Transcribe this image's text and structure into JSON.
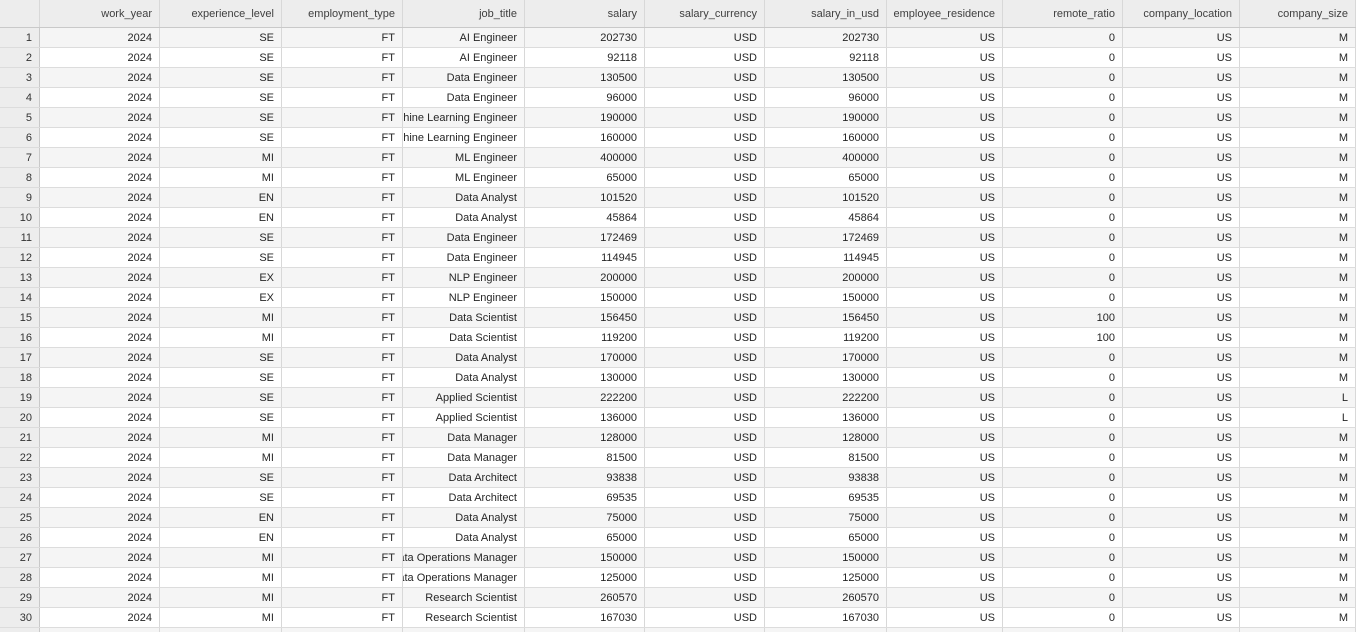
{
  "colors": {
    "header_bg": "#ededed",
    "stripe_bg": "#f5f5f5",
    "grid_line": "#d8d8d8",
    "text": "#262626"
  },
  "table": {
    "corner_label": "",
    "columns": [
      "work_year",
      "experience_level",
      "employment_type",
      "job_title",
      "salary",
      "salary_currency",
      "salary_in_usd",
      "employee_residence",
      "remote_ratio",
      "company_location",
      "company_size"
    ],
    "rows": [
      {
        "index": "1",
        "cells": [
          "2024",
          "SE",
          "FT",
          "AI Engineer",
          "202730",
          "USD",
          "202730",
          "US",
          "0",
          "US",
          "M"
        ]
      },
      {
        "index": "2",
        "cells": [
          "2024",
          "SE",
          "FT",
          "AI Engineer",
          "92118",
          "USD",
          "92118",
          "US",
          "0",
          "US",
          "M"
        ]
      },
      {
        "index": "3",
        "cells": [
          "2024",
          "SE",
          "FT",
          "Data Engineer",
          "130500",
          "USD",
          "130500",
          "US",
          "0",
          "US",
          "M"
        ]
      },
      {
        "index": "4",
        "cells": [
          "2024",
          "SE",
          "FT",
          "Data Engineer",
          "96000",
          "USD",
          "96000",
          "US",
          "0",
          "US",
          "M"
        ]
      },
      {
        "index": "5",
        "cells": [
          "2024",
          "SE",
          "FT",
          "Machine Learning Engineer",
          "190000",
          "USD",
          "190000",
          "US",
          "0",
          "US",
          "M"
        ]
      },
      {
        "index": "6",
        "cells": [
          "2024",
          "SE",
          "FT",
          "Machine Learning Engineer",
          "160000",
          "USD",
          "160000",
          "US",
          "0",
          "US",
          "M"
        ]
      },
      {
        "index": "7",
        "cells": [
          "2024",
          "MI",
          "FT",
          "ML Engineer",
          "400000",
          "USD",
          "400000",
          "US",
          "0",
          "US",
          "M"
        ]
      },
      {
        "index": "8",
        "cells": [
          "2024",
          "MI",
          "FT",
          "ML Engineer",
          "65000",
          "USD",
          "65000",
          "US",
          "0",
          "US",
          "M"
        ]
      },
      {
        "index": "9",
        "cells": [
          "2024",
          "EN",
          "FT",
          "Data Analyst",
          "101520",
          "USD",
          "101520",
          "US",
          "0",
          "US",
          "M"
        ]
      },
      {
        "index": "10",
        "cells": [
          "2024",
          "EN",
          "FT",
          "Data Analyst",
          "45864",
          "USD",
          "45864",
          "US",
          "0",
          "US",
          "M"
        ]
      },
      {
        "index": "11",
        "cells": [
          "2024",
          "SE",
          "FT",
          "Data Engineer",
          "172469",
          "USD",
          "172469",
          "US",
          "0",
          "US",
          "M"
        ]
      },
      {
        "index": "12",
        "cells": [
          "2024",
          "SE",
          "FT",
          "Data Engineer",
          "114945",
          "USD",
          "114945",
          "US",
          "0",
          "US",
          "M"
        ]
      },
      {
        "index": "13",
        "cells": [
          "2024",
          "EX",
          "FT",
          "NLP Engineer",
          "200000",
          "USD",
          "200000",
          "US",
          "0",
          "US",
          "M"
        ]
      },
      {
        "index": "14",
        "cells": [
          "2024",
          "EX",
          "FT",
          "NLP Engineer",
          "150000",
          "USD",
          "150000",
          "US",
          "0",
          "US",
          "M"
        ]
      },
      {
        "index": "15",
        "cells": [
          "2024",
          "MI",
          "FT",
          "Data Scientist",
          "156450",
          "USD",
          "156450",
          "US",
          "100",
          "US",
          "M"
        ]
      },
      {
        "index": "16",
        "cells": [
          "2024",
          "MI",
          "FT",
          "Data Scientist",
          "119200",
          "USD",
          "119200",
          "US",
          "100",
          "US",
          "M"
        ]
      },
      {
        "index": "17",
        "cells": [
          "2024",
          "SE",
          "FT",
          "Data Analyst",
          "170000",
          "USD",
          "170000",
          "US",
          "0",
          "US",
          "M"
        ]
      },
      {
        "index": "18",
        "cells": [
          "2024",
          "SE",
          "FT",
          "Data Analyst",
          "130000",
          "USD",
          "130000",
          "US",
          "0",
          "US",
          "M"
        ]
      },
      {
        "index": "19",
        "cells": [
          "2024",
          "SE",
          "FT",
          "Applied Scientist",
          "222200",
          "USD",
          "222200",
          "US",
          "0",
          "US",
          "L"
        ]
      },
      {
        "index": "20",
        "cells": [
          "2024",
          "SE",
          "FT",
          "Applied Scientist",
          "136000",
          "USD",
          "136000",
          "US",
          "0",
          "US",
          "L"
        ]
      },
      {
        "index": "21",
        "cells": [
          "2024",
          "MI",
          "FT",
          "Data Manager",
          "128000",
          "USD",
          "128000",
          "US",
          "0",
          "US",
          "M"
        ]
      },
      {
        "index": "22",
        "cells": [
          "2024",
          "MI",
          "FT",
          "Data Manager",
          "81500",
          "USD",
          "81500",
          "US",
          "0",
          "US",
          "M"
        ]
      },
      {
        "index": "23",
        "cells": [
          "2024",
          "SE",
          "FT",
          "Data Architect",
          "93838",
          "USD",
          "93838",
          "US",
          "0",
          "US",
          "M"
        ]
      },
      {
        "index": "24",
        "cells": [
          "2024",
          "SE",
          "FT",
          "Data Architect",
          "69535",
          "USD",
          "69535",
          "US",
          "0",
          "US",
          "M"
        ]
      },
      {
        "index": "25",
        "cells": [
          "2024",
          "EN",
          "FT",
          "Data Analyst",
          "75000",
          "USD",
          "75000",
          "US",
          "0",
          "US",
          "M"
        ]
      },
      {
        "index": "26",
        "cells": [
          "2024",
          "EN",
          "FT",
          "Data Analyst",
          "65000",
          "USD",
          "65000",
          "US",
          "0",
          "US",
          "M"
        ]
      },
      {
        "index": "27",
        "cells": [
          "2024",
          "MI",
          "FT",
          "Data Operations Manager",
          "150000",
          "USD",
          "150000",
          "US",
          "0",
          "US",
          "M"
        ]
      },
      {
        "index": "28",
        "cells": [
          "2024",
          "MI",
          "FT",
          "Data Operations Manager",
          "125000",
          "USD",
          "125000",
          "US",
          "0",
          "US",
          "M"
        ]
      },
      {
        "index": "29",
        "cells": [
          "2024",
          "MI",
          "FT",
          "Research Scientist",
          "260570",
          "USD",
          "260570",
          "US",
          "0",
          "US",
          "M"
        ]
      },
      {
        "index": "30",
        "cells": [
          "2024",
          "MI",
          "FT",
          "Research Scientist",
          "167030",
          "USD",
          "167030",
          "US",
          "0",
          "US",
          "M"
        ]
      }
    ]
  }
}
